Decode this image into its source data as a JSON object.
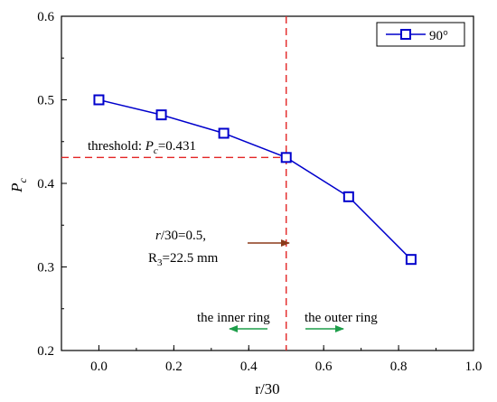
{
  "chart_data": {
    "type": "line",
    "xlabel": "r/30",
    "ylabel": {
      "main": "P",
      "sub": "c"
    },
    "xlim": [
      -0.1,
      1.0
    ],
    "ylim": [
      0.2,
      0.6
    ],
    "xticks": [
      0.0,
      0.2,
      0.4,
      0.6,
      0.8,
      1.0
    ],
    "xtick_labels": [
      "0.0",
      "0.2",
      "0.4",
      "0.6",
      "0.8",
      "1.0"
    ],
    "yticks": [
      0.2,
      0.3,
      0.4,
      0.5,
      0.6
    ],
    "ytick_labels": [
      "0.2",
      "0.3",
      "0.4",
      "0.5",
      "0.6"
    ],
    "grid": false,
    "legend_position": "top-right",
    "series": [
      {
        "name": "90°",
        "color": "#0000cc",
        "marker": "open-square",
        "x": [
          0.0,
          0.1667,
          0.3333,
          0.5,
          0.6667,
          0.8333
        ],
        "y": [
          0.5,
          0.482,
          0.46,
          0.431,
          0.384,
          0.309
        ]
      }
    ],
    "reference_lines": {
      "vertical_x": 0.5,
      "horizontal_y": 0.431,
      "color": "#e32626"
    },
    "annotations": {
      "threshold": {
        "prefix": "threshold: ",
        "var": "P",
        "sub": "c",
        "suffix": "=0.431"
      },
      "r_value": {
        "var": "r",
        "suffix": "/30=0.5,"
      },
      "radius": {
        "main": "R",
        "sub": "3",
        "suffix": "=22.5 mm"
      },
      "inner_ring": "the inner ring",
      "outer_ring": "the outer ring",
      "arrow_color_brown": "#8b3a1a",
      "arrow_color_green": "#1e9e4a"
    }
  }
}
